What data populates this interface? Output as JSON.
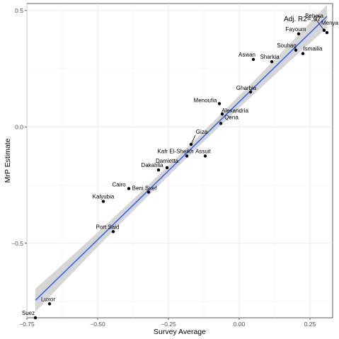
{
  "chart_data": {
    "type": "scatter",
    "title": "",
    "xlabel": "Survey Average",
    "ylabel": "MrP Estimate",
    "xlim": [
      -0.75,
      0.33
    ],
    "ylim": [
      -0.82,
      0.53
    ],
    "xticks": [
      -0.75,
      -0.5,
      -0.25,
      0.0,
      0.25
    ],
    "xtick_labels": [
      "−0.75",
      "−0.50",
      "−0.25",
      "0.00",
      "0.25"
    ],
    "yticks": [
      -0.5,
      0.0,
      0.5
    ],
    "ytick_labels": [
      "−0.5",
      "0.0",
      "0.5"
    ],
    "grid": true,
    "annotation": "Adj. R2=.97",
    "fit_line": {
      "x": [
        -0.72,
        0.31
      ],
      "y": [
        -0.745,
        0.475
      ],
      "color": "#3366ff",
      "band_color": "#c8c8c8"
    },
    "points": [
      {
        "name": "Suez",
        "x": -0.72,
        "y": -0.82
      },
      {
        "name": "Luxor",
        "x": -0.67,
        "y": -0.76
      },
      {
        "name": "Kalyubia",
        "x": -0.48,
        "y": -0.32
      },
      {
        "name": "Port Said",
        "x": -0.445,
        "y": -0.45
      },
      {
        "name": "Cairo",
        "x": -0.39,
        "y": -0.265
      },
      {
        "name": "Beni Suef",
        "x": -0.32,
        "y": -0.28
      },
      {
        "name": "Dakahlia",
        "x": -0.285,
        "y": -0.185
      },
      {
        "name": "Damietta",
        "x": -0.255,
        "y": -0.175
      },
      {
        "name": "Kafr El-Sheikh",
        "x": -0.185,
        "y": -0.125
      },
      {
        "name": "Giza",
        "x": -0.17,
        "y": -0.075
      },
      {
        "name": "Assuit",
        "x": -0.12,
        "y": -0.125
      },
      {
        "name": "Qena",
        "x": -0.065,
        "y": 0.015
      },
      {
        "name": "Alexandria",
        "x": -0.06,
        "y": 0.055
      },
      {
        "name": "Menoufia",
        "x": -0.07,
        "y": 0.1
      },
      {
        "name": "Gharbia",
        "x": 0.04,
        "y": 0.15
      },
      {
        "name": "Aswan",
        "x": 0.05,
        "y": 0.29
      },
      {
        "name": "Sharkia",
        "x": 0.115,
        "y": 0.28
      },
      {
        "name": "Souhag",
        "x": 0.2,
        "y": 0.33
      },
      {
        "name": "Ismailia",
        "x": 0.225,
        "y": 0.315
      },
      {
        "name": "Fayoum",
        "x": 0.21,
        "y": 0.4
      },
      {
        "name": "Behera",
        "x": 0.3,
        "y": 0.415
      },
      {
        "name": "Menya",
        "x": 0.31,
        "y": 0.405
      }
    ]
  }
}
